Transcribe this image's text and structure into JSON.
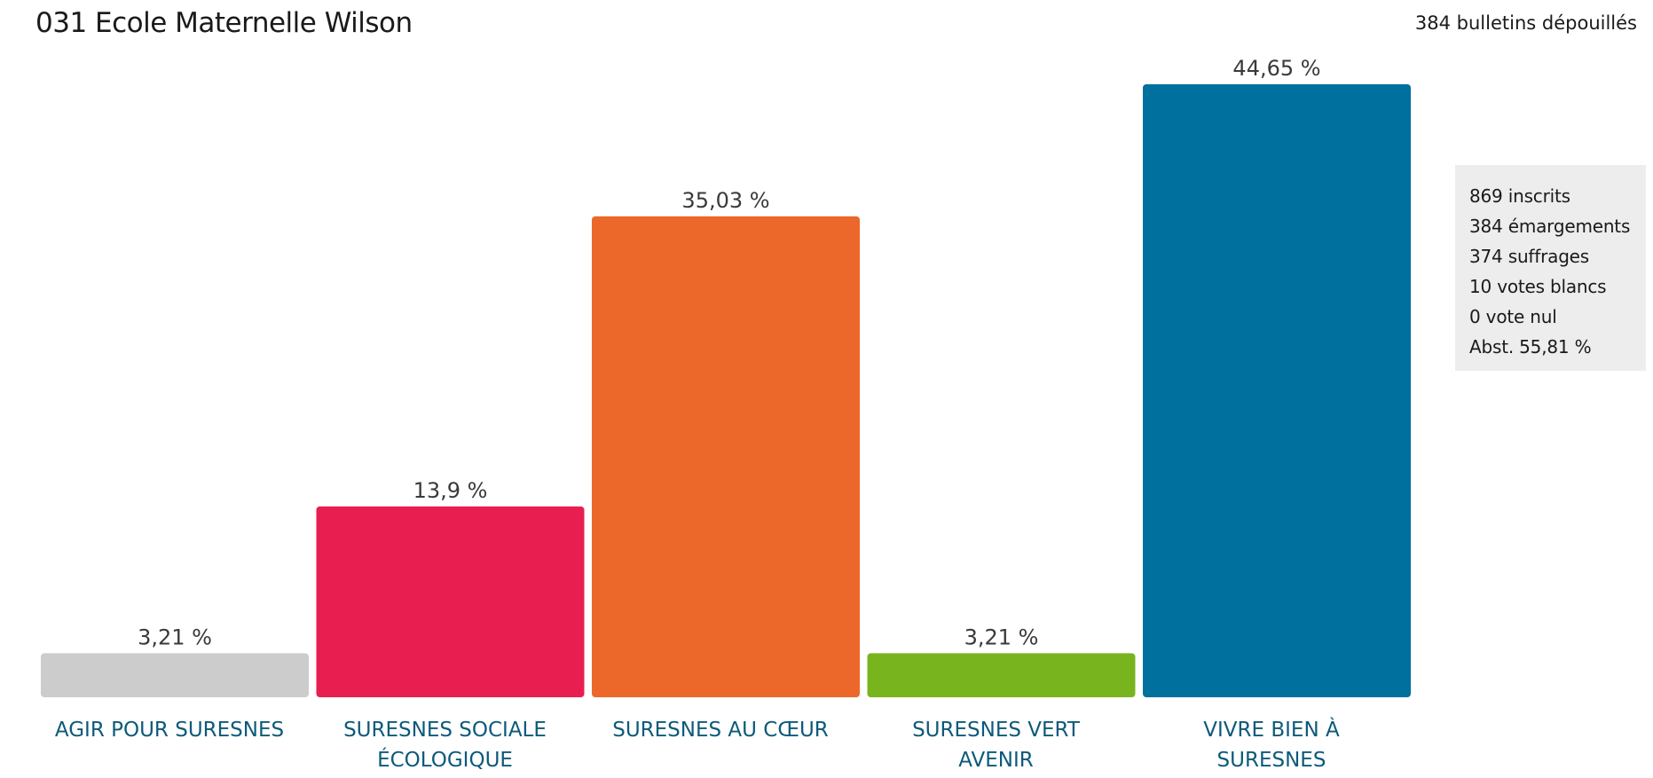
{
  "page": {
    "title": "031 Ecole Maternelle Wilson",
    "ballots": "384 bulletins dépouillés"
  },
  "stats": {
    "registered": "869 inscrits",
    "signatures": "384 émargements",
    "votes_cast": "374 suffrages",
    "blank": "10 votes blancs",
    "null": "0 vote nul",
    "abstention": "Abst. 55,81 %"
  },
  "chart_data": {
    "type": "bar",
    "categories": [
      [
        "AGIR POUR SURESNES"
      ],
      [
        "SURESNES SOCIALE",
        "ÉCOLOGIQUE"
      ],
      [
        "SURESNES AU CŒUR"
      ],
      [
        "SURESNES VERT",
        "AVENIR"
      ],
      [
        "VIVRE BIEN À",
        "SURESNES"
      ]
    ],
    "values": [
      3.21,
      13.9,
      35.03,
      3.21,
      44.65
    ],
    "value_labels": [
      "3,21 %",
      "13,9 %",
      "35,03 %",
      "3,21 %",
      "44,65 %"
    ],
    "colors": [
      "#cccccc",
      "#e91e50",
      "#eb682a",
      "#78b41e",
      "#00709e"
    ],
    "label_color": "#0d5a7a",
    "value_label_color": "#3a3a3a",
    "ylim": [
      0,
      44.65
    ],
    "grid": false,
    "legend": "none"
  }
}
